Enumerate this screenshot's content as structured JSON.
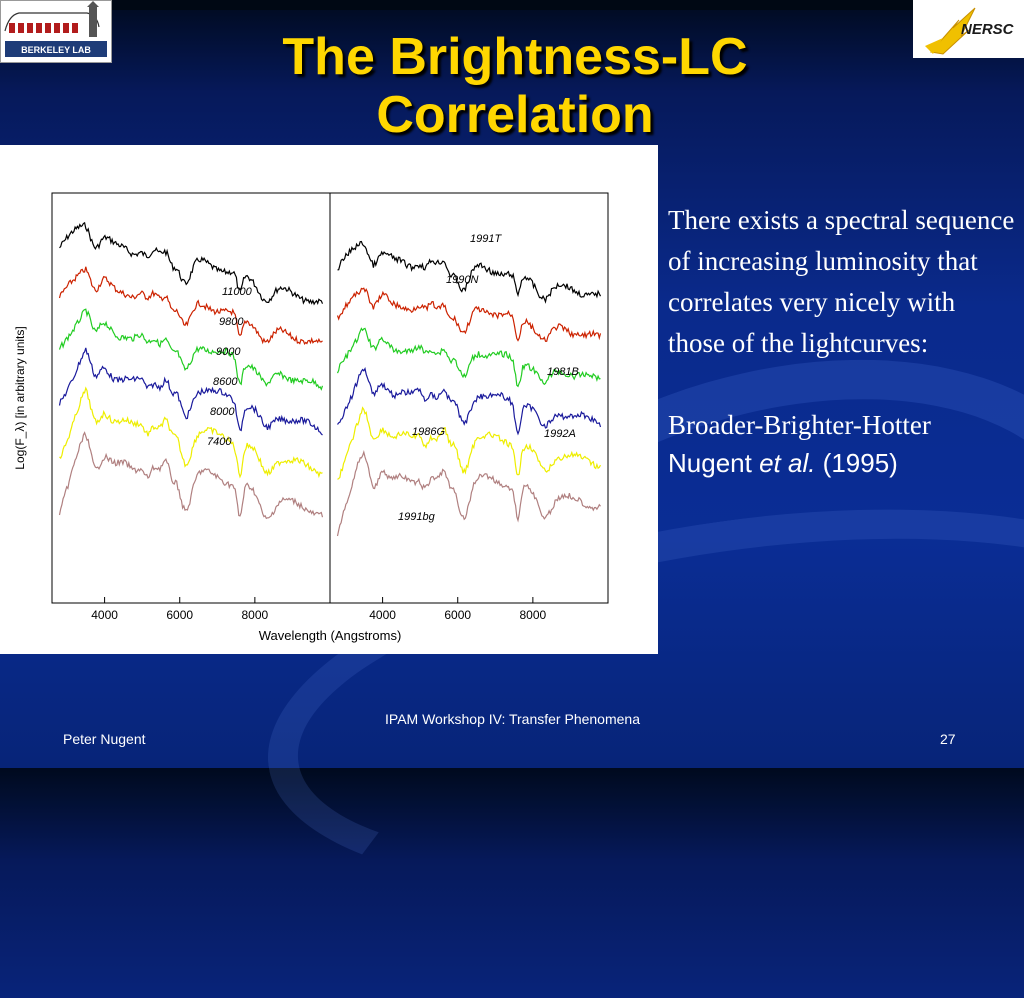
{
  "slide": {
    "title": "The Brightness-LC Correlation",
    "body": {
      "paragraph1": "There exists a spectral sequence of increasing luminosity that correlates very nicely with those of the lightcurves:",
      "paragraph2": "Broader-Brighter-Hotter",
      "citation_author": "Nugent ",
      "citation_etal": "et al.",
      "citation_year": " (1995)"
    },
    "logos": {
      "left": {
        "text": "BERKELEY LAB",
        "icon": "berkeley-lab-logo-icon"
      },
      "right": {
        "text": "NERSC",
        "icon": "nersc-logo-icon"
      }
    },
    "footer": {
      "author": "Peter Nugent",
      "event": "IPAM Workshop IV: Transfer Phenomena",
      "page": "27"
    }
  },
  "chart_data": {
    "type": "line",
    "xlabel": "Wavelength (Angstroms)",
    "ylabel": "Log(F_λ) [in arbitrary units]",
    "xlim": [
      2600,
      10000
    ],
    "panels": [
      {
        "name": "left",
        "xticks": [
          "4000",
          "6000",
          "8000"
        ],
        "series": [
          {
            "name": "11000",
            "color": "#000000"
          },
          {
            "name": "9800",
            "color": "#cc2200"
          },
          {
            "name": "9000",
            "color": "#22cc22"
          },
          {
            "name": "8600",
            "color": "#1a1a9c"
          },
          {
            "name": "8000",
            "color": "#eeee00"
          },
          {
            "name": "7400",
            "color": "#b08080"
          }
        ]
      },
      {
        "name": "right",
        "xticks": [
          "4000",
          "6000",
          "8000"
        ],
        "series": [
          {
            "name": "1991T",
            "color": "#000000"
          },
          {
            "name": "1990N",
            "color": "#cc2200"
          },
          {
            "name": "1981B",
            "color": "#22cc22"
          },
          {
            "name": "1992A",
            "color": "#1a1a9c"
          },
          {
            "name": "1986G",
            "color": "#eeee00"
          },
          {
            "name": "1991bg",
            "color": "#b08080"
          }
        ]
      }
    ]
  }
}
